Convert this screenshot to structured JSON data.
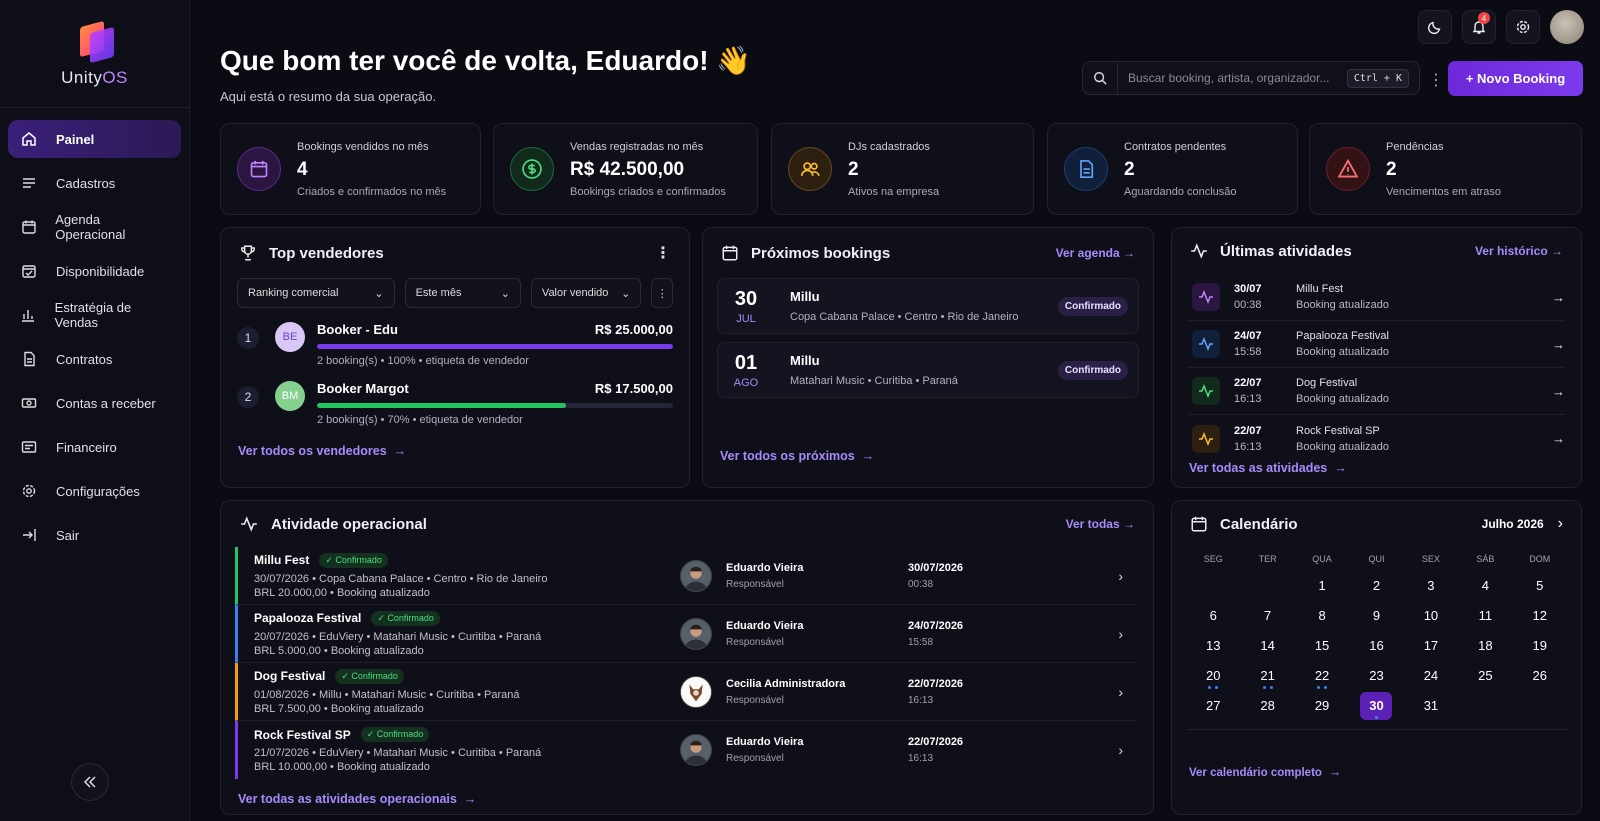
{
  "brand": {
    "name": "Unity",
    "suffix": "OS"
  },
  "sidebar": {
    "items": [
      {
        "label": "Painel",
        "icon": "home-icon"
      },
      {
        "label": "Cadastros",
        "icon": "list-icon"
      },
      {
        "label": "Agenda Operacional",
        "icon": "calendar-icon"
      },
      {
        "label": "Disponibilidade",
        "icon": "calendar-check-icon"
      },
      {
        "label": "Estratégia de Vendas",
        "icon": "bar-chart-icon"
      },
      {
        "label": "Contratos",
        "icon": "document-icon"
      },
      {
        "label": "Contas a receber",
        "icon": "money-icon"
      },
      {
        "label": "Financeiro",
        "icon": "finance-icon"
      },
      {
        "label": "Configurações",
        "icon": "gear-icon"
      },
      {
        "label": "Sair",
        "icon": "logout-icon"
      }
    ]
  },
  "header": {
    "title": "Que bom ter você de volta, Eduardo! 👋",
    "subtitle": "Aqui está o resumo da sua operação.",
    "notifications_count": "4",
    "search_placeholder": "Buscar booking, artista, organizador...",
    "shortcut": "Ctrl + K",
    "new_booking": "+ Novo Booking"
  },
  "stats": [
    {
      "label": "Bookings vendidos no mês",
      "value": "4",
      "sub": "Criados e confirmados no mês",
      "color": "#a855f7",
      "icon": "calendar-icon"
    },
    {
      "label": "Vendas registradas no mês",
      "value": "R$ 42.500,00",
      "sub": "Bookings criados e confirmados",
      "color": "#22c55e",
      "icon": "dollar-icon"
    },
    {
      "label": "DJs cadastrados",
      "value": "2",
      "sub": "Ativos na empresa",
      "color": "#f59e0b",
      "icon": "users-icon"
    },
    {
      "label": "Contratos pendentes",
      "value": "2",
      "sub": "Aguardando conclusão",
      "color": "#3b82f6",
      "icon": "document-icon"
    },
    {
      "label": "Pendências",
      "value": "2",
      "sub": "Vencimentos em atraso",
      "color": "#ef4444",
      "icon": "warning-icon"
    }
  ],
  "top_sellers": {
    "title": "Top vendedores",
    "filters": [
      "Ranking comercial",
      "Este mês",
      "Valor vendido"
    ],
    "sellers": [
      {
        "rank": "1",
        "initials": "BE",
        "name": "Booker - Edu",
        "value": "R$ 25.000,00",
        "meta": "2 booking(s) • 100% • etiqueta de vendedor",
        "progress": 1.0,
        "color": "#7c3aed"
      },
      {
        "rank": "2",
        "initials": "BM",
        "name": "Booker Margot",
        "value": "R$ 17.500,00",
        "meta": "2 booking(s) • 70% • etiqueta de vendedor",
        "progress": 0.7,
        "color": "#22c55e"
      }
    ],
    "link": "Ver todos os vendedores"
  },
  "upcoming": {
    "title": "Próximos bookings",
    "link_top": "Ver agenda",
    "items": [
      {
        "day": "30",
        "month": "JUL",
        "name": "Millu",
        "location": "Copa Cabana Palace • Centro • Rio de Janeiro",
        "status": "Confirmado"
      },
      {
        "day": "01",
        "month": "AGO",
        "name": "Millu",
        "location": "Matahari Music • Curitiba • Paraná",
        "status": "Confirmado"
      }
    ],
    "link": "Ver todos os próximos"
  },
  "recent": {
    "title": "Últimas atividades",
    "link_top": "Ver histórico",
    "items": [
      {
        "date": "30/07",
        "time": "00:38",
        "name": "Millu Fest",
        "action": "Booking atualizado",
        "color": "#a855f7"
      },
      {
        "date": "24/07",
        "time": "15:58",
        "name": "Papalooza Festival",
        "action": "Booking atualizado",
        "color": "#3b82f6"
      },
      {
        "date": "22/07",
        "time": "16:13",
        "name": "Dog Festival",
        "action": "Booking atualizado",
        "color": "#22c55e"
      },
      {
        "date": "22/07",
        "time": "16:13",
        "name": "Rock Festival SP",
        "action": "Booking atualizado",
        "color": "#f59e0b"
      }
    ],
    "link": "Ver todas as atividades"
  },
  "operational": {
    "title": "Atividade operacional",
    "link_top": "Ver todas",
    "rows": [
      {
        "name": "Millu Fest",
        "status": "✓ Confirmado",
        "line2": "30/07/2026 • Copa Cabana Palace • Centro • Rio de Janeiro",
        "line3": "BRL 20.000,00 • Booking atualizado",
        "person": "Eduardo Vieira",
        "role": "Responsável",
        "date": "30/07/2026",
        "time": "00:38",
        "accent": "#22c55e"
      },
      {
        "name": "Papalooza Festival",
        "status": "✓ Confirmado",
        "line2": "20/07/2026 • EduViery • Matahari Music • Curitiba • Paraná",
        "line3": "BRL 5.000,00 • Booking atualizado",
        "person": "Eduardo Vieira",
        "role": "Responsável",
        "date": "24/07/2026",
        "time": "15:58",
        "accent": "#3b82f6"
      },
      {
        "name": "Dog Festival",
        "status": "✓ Confirmado",
        "line2": "01/08/2026 • Millu • Matahari Music • Curitiba • Paraná",
        "line3": "BRL 7.500,00 • Booking atualizado",
        "person": "Cecilia Administradora",
        "role": "Responsável",
        "date": "22/07/2026",
        "time": "16:13",
        "accent": "#f59e0b"
      },
      {
        "name": "Rock Festival SP",
        "status": "✓ Confirmado",
        "line2": "21/07/2026 • EduViery • Matahari Music • Curitiba • Paraná",
        "line3": "BRL 10.000,00 • Booking atualizado",
        "person": "Eduardo Vieira",
        "role": "Responsável",
        "date": "22/07/2026",
        "time": "16:13",
        "accent": "#7c3aed"
      }
    ],
    "link": "Ver todas as atividades operacionais"
  },
  "calendar": {
    "title": "Calendário",
    "month": "Julho 2026",
    "weekdays": [
      "SEG",
      "TER",
      "QUA",
      "QUI",
      "SEX",
      "SÁB",
      "DOM"
    ],
    "days": [
      "",
      "",
      "1",
      "2",
      "3",
      "4",
      "5",
      "6",
      "7",
      "8",
      "9",
      "10",
      "11",
      "12",
      "13",
      "14",
      "15",
      "16",
      "17",
      "18",
      "19",
      "20",
      "21",
      "22",
      "23",
      "24",
      "25",
      "26",
      "27",
      "28",
      "29",
      "30",
      "31"
    ],
    "event_days": {
      "20": 2,
      "21": 2,
      "22": 2,
      "30": 1
    },
    "today": "30",
    "link": "Ver calendário completo"
  }
}
